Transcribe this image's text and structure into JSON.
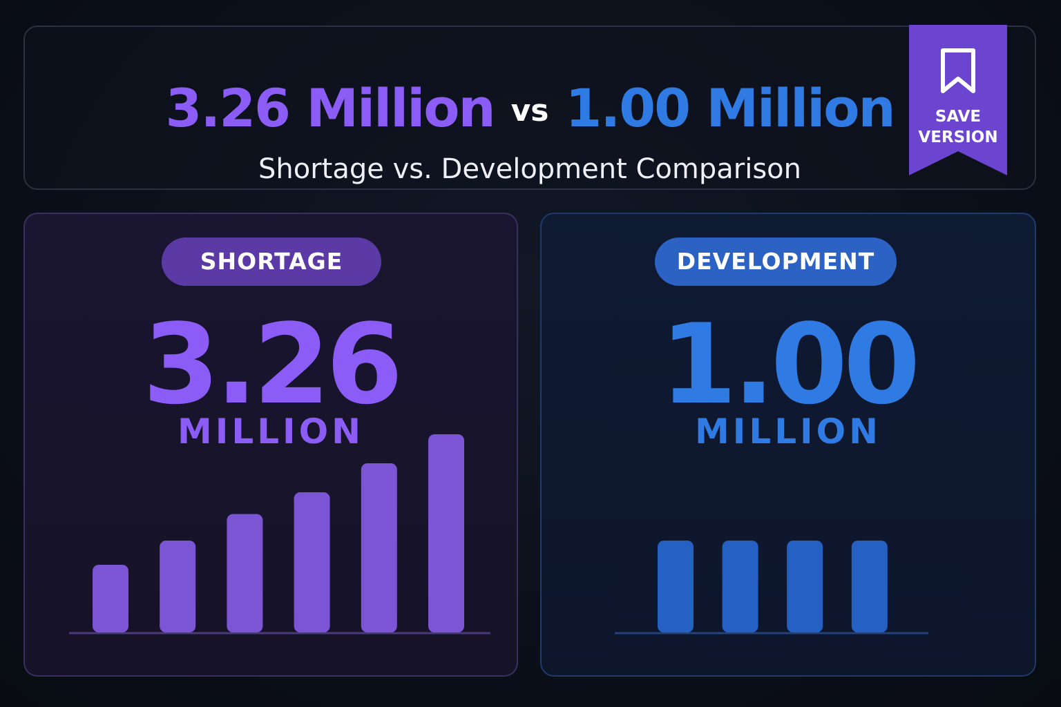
{
  "header": {
    "left_value": "3.26 Million",
    "vs_label": "vs",
    "right_value": "1.00 Million",
    "subtitle": "Shortage vs. Development Comparison"
  },
  "save_button": {
    "line1": "SAVE",
    "line2": "VERSION",
    "icon": "bookmark-icon"
  },
  "colors": {
    "shortage": "#8b5cf6",
    "shortage_bar": "#7b55d4",
    "shortage_axis": "#4a3a7a",
    "development": "#2f7be3",
    "development_bar": "#2461c2",
    "development_axis": "#23427a"
  },
  "panels": {
    "shortage": {
      "tag": "SHORTAGE",
      "value": "3.26",
      "unit": "MILLION"
    },
    "development": {
      "tag": "DEVELOPMENT",
      "value": "1.00",
      "unit": "MILLION"
    }
  },
  "chart_data": [
    {
      "type": "bar",
      "series": [
        {
          "values": [
            0.28,
            0.38,
            0.49,
            0.58,
            0.7,
            0.82
          ]
        }
      ],
      "ylim": [
        0,
        1
      ],
      "grid": false,
      "legend": "none"
    },
    {
      "type": "bar",
      "series": [
        {
          "values": [
            0.38,
            0.38,
            0.38,
            0.38
          ]
        }
      ],
      "ylim": [
        0,
        1
      ],
      "grid": false,
      "legend": "none"
    }
  ]
}
